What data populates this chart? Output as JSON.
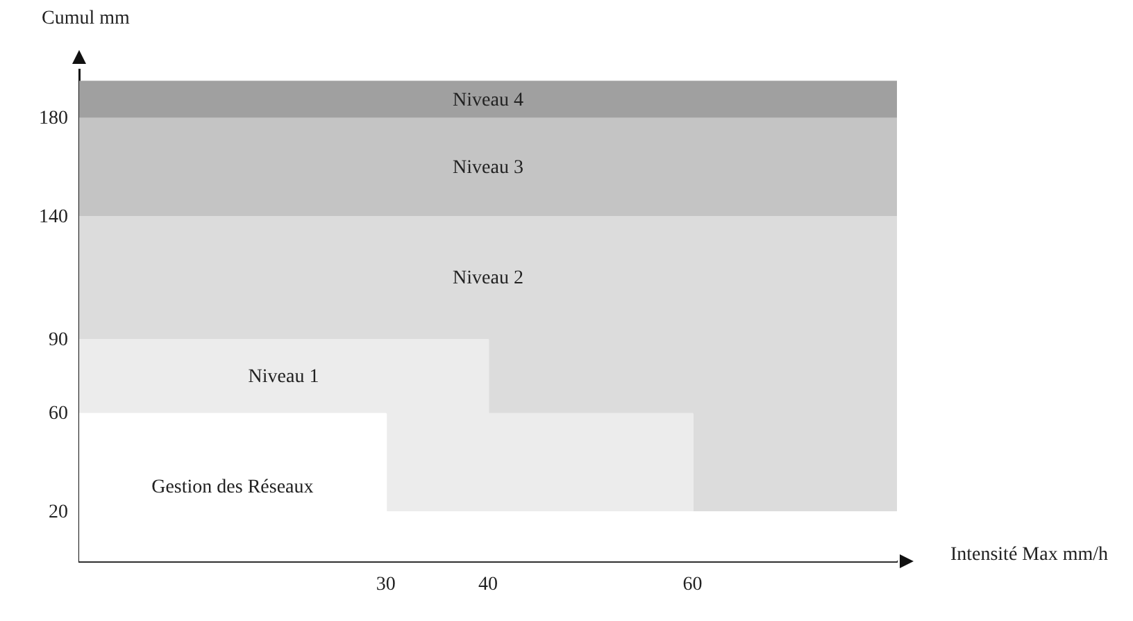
{
  "chart_data": {
    "type": "area",
    "xlabel": "Intensité Max mm/h",
    "ylabel": "Cumul mm",
    "x": [
      0,
      30,
      30,
      40,
      40,
      60,
      60,
      80
    ],
    "series": [
      {
        "color": "#ffffff",
        "values": [
          60,
          60,
          20,
          20,
          20,
          20,
          20,
          20
        ]
      },
      {
        "color": "#ececec",
        "values": [
          90,
          90,
          90,
          90,
          60,
          60,
          20,
          20
        ]
      },
      {
        "color": "#dcdcdc",
        "values": [
          140,
          140,
          140,
          140,
          140,
          140,
          140,
          140
        ]
      },
      {
        "color": "#c4c4c4",
        "values": [
          180,
          180,
          180,
          180,
          180,
          180,
          180,
          180
        ]
      },
      {
        "color": "#a0a0a0",
        "values": [
          195,
          195,
          195,
          195,
          195,
          195,
          195,
          195
        ]
      }
    ],
    "xlim": [
      0,
      80
    ],
    "xticks": [
      30,
      40,
      60
    ],
    "ylim": [
      0,
      200
    ],
    "yticks": [
      20,
      60,
      90,
      140,
      180
    ],
    "grid": false,
    "legend": false,
    "annotations": [
      "Gestion des Réseaux",
      "Niveau 1",
      "Niveau 2",
      "Niveau 3",
      "Niveau 4"
    ]
  }
}
